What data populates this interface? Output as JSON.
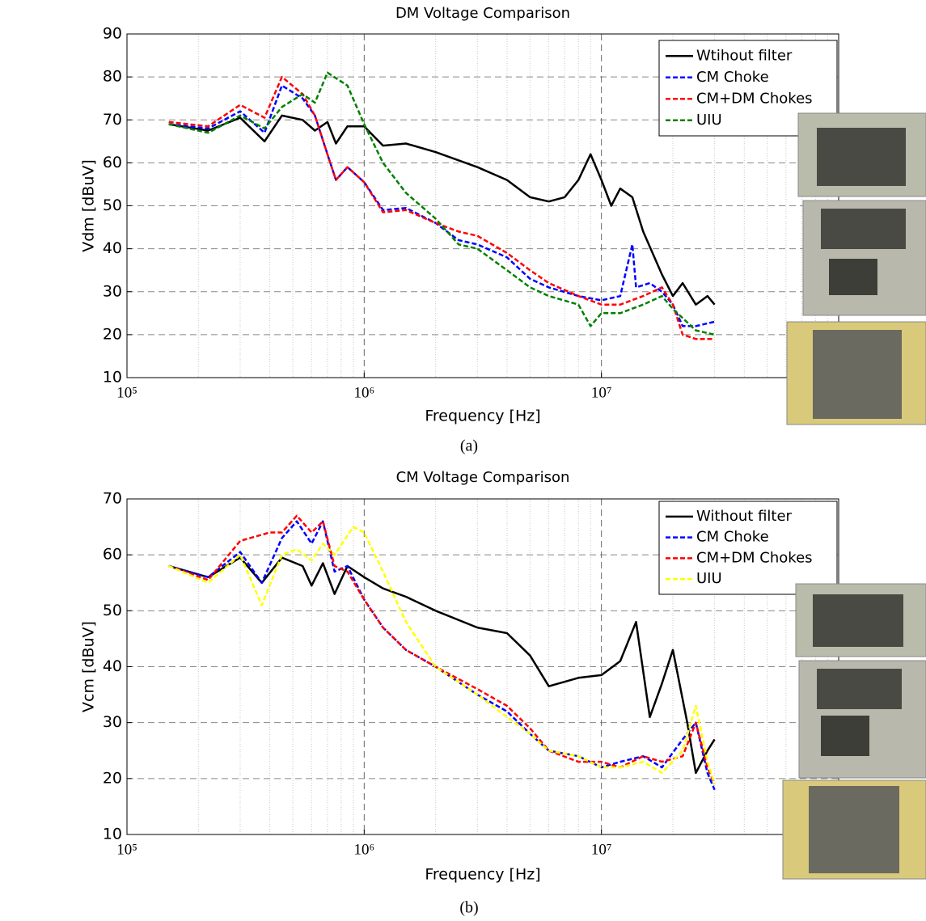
{
  "chart_data": [
    {
      "type": "line",
      "title": "DM Voltage Comparison",
      "x_label": "Frequency [Hz]",
      "y_label": "Vdm [dBuV]",
      "caption": "(a)",
      "log_x": true,
      "grid": true,
      "legend": "upper right",
      "xlim": [
        100000,
        100000000
      ],
      "ylim": [
        10,
        90
      ],
      "xticks": [
        {
          "value": 100000,
          "label": "10⁵"
        },
        {
          "value": 1000000,
          "label": "10⁶"
        },
        {
          "value": 10000000,
          "label": "10⁷"
        }
      ],
      "yticks": [
        10,
        20,
        30,
        40,
        50,
        60,
        70,
        80,
        90
      ],
      "series": [
        {
          "name": "Wtihout filter",
          "color": "#000000",
          "linestyle": "solid",
          "x": [
            150000,
            220000,
            300000,
            380000,
            450000,
            550000,
            620000,
            700000,
            760000,
            850000,
            1000000,
            1200000,
            1500000,
            2000000,
            3000000,
            4000000,
            5000000,
            6000000,
            7000000,
            8000000,
            9000000,
            10000000,
            11000000,
            12000000,
            13500000,
            15000000,
            18000000,
            20000000,
            22000000,
            25000000,
            28000000,
            30000000
          ],
          "values": [
            69,
            67.5,
            70.5,
            65,
            71,
            70,
            67.5,
            69.5,
            64.5,
            68.5,
            68.5,
            64,
            64.5,
            62.5,
            59,
            56,
            52,
            51,
            52,
            56,
            62,
            56,
            50,
            54,
            52,
            44,
            34,
            29,
            32,
            27,
            29,
            27
          ]
        },
        {
          "name": "CM Choke",
          "color": "#0000ff",
          "linestyle": "dashed",
          "x": [
            150000,
            220000,
            300000,
            380000,
            450000,
            550000,
            620000,
            700000,
            760000,
            850000,
            1000000,
            1200000,
            1500000,
            2000000,
            2500000,
            3000000,
            4000000,
            5000000,
            6000000,
            8000000,
            10000000,
            12000000,
            13500000,
            14000000,
            16000000,
            18000000,
            20000000,
            22000000,
            25000000,
            30000000
          ],
          "values": [
            69,
            68,
            72,
            67,
            78,
            75,
            71,
            62,
            56,
            59,
            55.5,
            49,
            49.5,
            46,
            42,
            41,
            38,
            33,
            31,
            29,
            28,
            29,
            41,
            31,
            32,
            30,
            27,
            22,
            22,
            23
          ]
        },
        {
          "name": "CM+DM Chokes",
          "color": "#ff0000",
          "linestyle": "dashed",
          "x": [
            150000,
            220000,
            300000,
            380000,
            450000,
            550000,
            620000,
            700000,
            760000,
            850000,
            1000000,
            1200000,
            1500000,
            2000000,
            2500000,
            3000000,
            4000000,
            5000000,
            6000000,
            8000000,
            10000000,
            12000000,
            15000000,
            18000000,
            20000000,
            22000000,
            25000000,
            30000000
          ],
          "values": [
            69.5,
            68.5,
            73.5,
            70.5,
            80,
            76,
            71,
            62,
            56,
            59,
            55.5,
            48.5,
            49,
            46,
            44,
            43,
            39,
            35,
            32,
            29,
            27,
            27,
            29,
            31,
            27,
            20,
            19,
            19
          ]
        },
        {
          "name": "UIU",
          "color": "#008000",
          "linestyle": "dashed",
          "x": [
            150000,
            220000,
            300000,
            380000,
            450000,
            550000,
            620000,
            700000,
            850000,
            1000000,
            1200000,
            1500000,
            2000000,
            2500000,
            3000000,
            4000000,
            5000000,
            6000000,
            8000000,
            9000000,
            10000000,
            12000000,
            15000000,
            18000000,
            20000000,
            25000000,
            30000000
          ],
          "values": [
            69,
            67,
            71,
            68,
            73,
            76,
            74,
            81,
            78,
            69,
            60,
            53,
            47,
            41,
            40,
            35,
            31,
            29,
            27,
            22,
            25,
            25,
            27,
            29,
            26,
            21,
            20
          ]
        }
      ]
    },
    {
      "type": "line",
      "title": "CM Voltage Comparison",
      "x_label": "Frequency [Hz]",
      "y_label": "Vcm [dBuV]",
      "caption": "(b)",
      "log_x": true,
      "grid": true,
      "legend": "upper right",
      "xlim": [
        100000,
        100000000
      ],
      "ylim": [
        10,
        70
      ],
      "xticks": [
        {
          "value": 100000,
          "label": "10⁵"
        },
        {
          "value": 1000000,
          "label": "10⁶"
        },
        {
          "value": 10000000,
          "label": "10⁷"
        }
      ],
      "yticks": [
        10,
        20,
        30,
        40,
        50,
        60,
        70
      ],
      "series": [
        {
          "name": "Without filter",
          "color": "#000000",
          "linestyle": "solid",
          "x": [
            150000,
            220000,
            300000,
            370000,
            450000,
            550000,
            600000,
            670000,
            750000,
            850000,
            1000000,
            1200000,
            1500000,
            2000000,
            3000000,
            4000000,
            5000000,
            6000000,
            8000000,
            10000000,
            12000000,
            14000000,
            16000000,
            18000000,
            20000000,
            23000000,
            25000000,
            28000000,
            30000000
          ],
          "values": [
            58,
            56,
            59.5,
            55,
            59.5,
            58,
            54.5,
            58.5,
            53,
            58,
            56,
            54,
            52.5,
            50,
            47,
            46,
            42,
            36.5,
            38,
            38.5,
            41,
            48,
            31,
            37,
            43,
            30,
            21,
            25,
            27
          ]
        },
        {
          "name": "CM Choke",
          "color": "#0000ff",
          "linestyle": "dashed",
          "x": [
            150000,
            220000,
            300000,
            370000,
            450000,
            520000,
            600000,
            670000,
            750000,
            850000,
            1000000,
            1200000,
            1500000,
            2000000,
            3000000,
            4000000,
            5000000,
            6000000,
            8000000,
            10000000,
            12000000,
            15000000,
            18000000,
            22000000,
            25000000,
            28000000,
            30000000
          ],
          "values": [
            58,
            56,
            60.5,
            55,
            63,
            66,
            62,
            66,
            57,
            58,
            52,
            47,
            43,
            40,
            35,
            32,
            28,
            25,
            24,
            22,
            23,
            24,
            22,
            27,
            30,
            21,
            18
          ]
        },
        {
          "name": "CM+DM Chokes",
          "color": "#ff0000",
          "linestyle": "dashed",
          "x": [
            150000,
            220000,
            300000,
            400000,
            450000,
            520000,
            600000,
            670000,
            750000,
            850000,
            1000000,
            1200000,
            1500000,
            2000000,
            3000000,
            4000000,
            5000000,
            6000000,
            8000000,
            10000000,
            12000000,
            15000000,
            18000000,
            22000000,
            25000000,
            28000000,
            30000000
          ],
          "values": [
            58,
            55.5,
            62.5,
            64,
            64,
            67,
            64,
            66,
            58,
            57,
            52,
            47,
            43,
            40,
            36,
            33,
            29,
            25,
            23,
            23,
            22,
            24,
            23,
            24,
            30,
            22,
            19
          ]
        },
        {
          "name": "UIU",
          "color": "#ffff00",
          "linestyle": "dashed",
          "x": [
            150000,
            220000,
            300000,
            370000,
            450000,
            520000,
            600000,
            670000,
            750000,
            900000,
            1000000,
            1200000,
            1500000,
            2000000,
            3000000,
            4000000,
            5000000,
            6000000,
            8000000,
            10000000,
            12000000,
            15000000,
            18000000,
            22000000,
            25000000,
            28000000,
            30000000
          ],
          "values": [
            58,
            55,
            60,
            51,
            60,
            61,
            59,
            62,
            60,
            65,
            64,
            57,
            48,
            40,
            35,
            31,
            28,
            25,
            24,
            22,
            22,
            23,
            21,
            25,
            33,
            23,
            19
          ]
        }
      ]
    }
  ]
}
